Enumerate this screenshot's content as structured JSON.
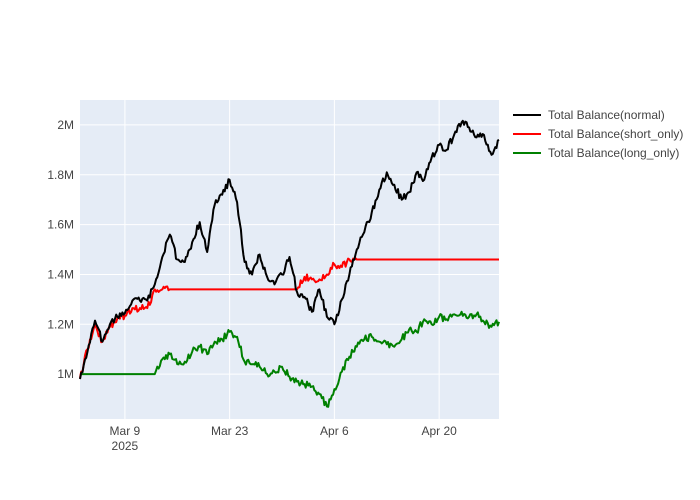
{
  "chart_data": {
    "type": "line",
    "title": "",
    "xlabel": "",
    "ylabel": "",
    "x_range": [
      "2025-03-03",
      "2025-04-28"
    ],
    "ylim": [
      820000,
      2100000
    ],
    "plot_bgcolor": "#e5ecf6",
    "grid": true,
    "legend_position": "right",
    "x_ticks": [
      {
        "date": "2025-03-09",
        "label": "Mar 9",
        "sublabel": "2025"
      },
      {
        "date": "2025-03-23",
        "label": "Mar 23",
        "sublabel": ""
      },
      {
        "date": "2025-04-06",
        "label": "Apr 6",
        "sublabel": ""
      },
      {
        "date": "2025-04-20",
        "label": "Apr 20",
        "sublabel": ""
      }
    ],
    "y_ticks": [
      {
        "value": 1000000,
        "label": "1M"
      },
      {
        "value": 1200000,
        "label": "1.2M"
      },
      {
        "value": 1400000,
        "label": "1.4M"
      },
      {
        "value": 1600000,
        "label": "1.6M"
      },
      {
        "value": 1800000,
        "label": "1.8M"
      },
      {
        "value": 2000000,
        "label": "2M"
      }
    ],
    "series": [
      {
        "name": "Total Balance(normal)",
        "color": "#000000",
        "x": [
          "2025-03-03",
          "2025-03-04",
          "2025-03-05",
          "2025-03-06",
          "2025-03-07",
          "2025-03-08",
          "2025-03-09",
          "2025-03-10",
          "2025-03-11",
          "2025-03-12",
          "2025-03-13",
          "2025-03-14",
          "2025-03-15",
          "2025-03-16",
          "2025-03-17",
          "2025-03-18",
          "2025-03-19",
          "2025-03-20",
          "2025-03-21",
          "2025-03-22",
          "2025-03-23",
          "2025-03-24",
          "2025-03-25",
          "2025-03-26",
          "2025-03-27",
          "2025-03-28",
          "2025-03-29",
          "2025-03-30",
          "2025-03-31",
          "2025-04-01",
          "2025-04-02",
          "2025-04-03",
          "2025-04-04",
          "2025-04-05",
          "2025-04-06",
          "2025-04-07",
          "2025-04-08",
          "2025-04-09",
          "2025-04-10",
          "2025-04-11",
          "2025-04-12",
          "2025-04-13",
          "2025-04-14",
          "2025-04-15",
          "2025-04-16",
          "2025-04-17",
          "2025-04-18",
          "2025-04-19",
          "2025-04-20",
          "2025-04-21",
          "2025-04-22",
          "2025-04-23",
          "2025-04-24",
          "2025-04-25",
          "2025-04-26",
          "2025-04-27",
          "2025-04-28"
        ],
        "values": [
          980000,
          1090000,
          1215000,
          1130000,
          1200000,
          1230000,
          1245000,
          1295000,
          1295000,
          1295000,
          1360000,
          1470000,
          1560000,
          1460000,
          1450000,
          1530000,
          1610000,
          1490000,
          1680000,
          1720000,
          1780000,
          1690000,
          1450000,
          1400000,
          1480000,
          1390000,
          1360000,
          1400000,
          1470000,
          1330000,
          1310000,
          1250000,
          1340000,
          1230000,
          1200000,
          1300000,
          1400000,
          1500000,
          1570000,
          1650000,
          1740000,
          1810000,
          1760000,
          1700000,
          1730000,
          1810000,
          1780000,
          1870000,
          1920000,
          1900000,
          1960000,
          2010000,
          1990000,
          1950000,
          1960000,
          1880000,
          1940000
        ]
      },
      {
        "name": "Total Balance(short_only)",
        "color": "#ff0000",
        "x": [
          "2025-03-03",
          "2025-03-04",
          "2025-03-05",
          "2025-03-06",
          "2025-03-07",
          "2025-03-08",
          "2025-03-09",
          "2025-03-10",
          "2025-03-11",
          "2025-03-12",
          "2025-03-13",
          "2025-03-14",
          "2025-03-15",
          "2025-04-01",
          "2025-04-02",
          "2025-04-03",
          "2025-04-04",
          "2025-04-05",
          "2025-04-06",
          "2025-04-07",
          "2025-04-08",
          "2025-04-09",
          "2025-04-28"
        ],
        "values": [
          985000,
          1100000,
          1195000,
          1130000,
          1190000,
          1225000,
          1235000,
          1265000,
          1265000,
          1265000,
          1340000,
          1340000,
          1340000,
          1340000,
          1390000,
          1380000,
          1380000,
          1400000,
          1440000,
          1430000,
          1460000,
          1460000,
          1460000
        ]
      },
      {
        "name": "Total Balance(long_only)",
        "color": "#008000",
        "x": [
          "2025-03-03",
          "2025-03-08",
          "2025-03-13",
          "2025-03-14",
          "2025-03-15",
          "2025-03-16",
          "2025-03-17",
          "2025-03-18",
          "2025-03-19",
          "2025-03-20",
          "2025-03-21",
          "2025-03-22",
          "2025-03-23",
          "2025-03-24",
          "2025-03-25",
          "2025-03-26",
          "2025-03-27",
          "2025-03-28",
          "2025-03-29",
          "2025-03-30",
          "2025-03-31",
          "2025-04-01",
          "2025-04-02",
          "2025-04-03",
          "2025-04-04",
          "2025-04-05",
          "2025-04-06",
          "2025-04-07",
          "2025-04-08",
          "2025-04-09",
          "2025-04-10",
          "2025-04-11",
          "2025-04-12",
          "2025-04-13",
          "2025-04-14",
          "2025-04-15",
          "2025-04-16",
          "2025-04-17",
          "2025-04-18",
          "2025-04-19",
          "2025-04-20",
          "2025-04-21",
          "2025-04-22",
          "2025-04-23",
          "2025-04-24",
          "2025-04-25",
          "2025-04-26",
          "2025-04-27",
          "2025-04-28"
        ],
        "values": [
          1000000,
          1000000,
          1000000,
          1060000,
          1080000,
          1040000,
          1050000,
          1090000,
          1110000,
          1080000,
          1130000,
          1140000,
          1170000,
          1150000,
          1050000,
          1040000,
          1030000,
          1000000,
          1010000,
          1030000,
          990000,
          970000,
          960000,
          950000,
          920000,
          870000,
          940000,
          1010000,
          1070000,
          1110000,
          1140000,
          1150000,
          1130000,
          1120000,
          1110000,
          1140000,
          1180000,
          1170000,
          1220000,
          1200000,
          1230000,
          1220000,
          1240000,
          1250000,
          1230000,
          1240000,
          1210000,
          1190000,
          1210000
        ]
      }
    ]
  }
}
